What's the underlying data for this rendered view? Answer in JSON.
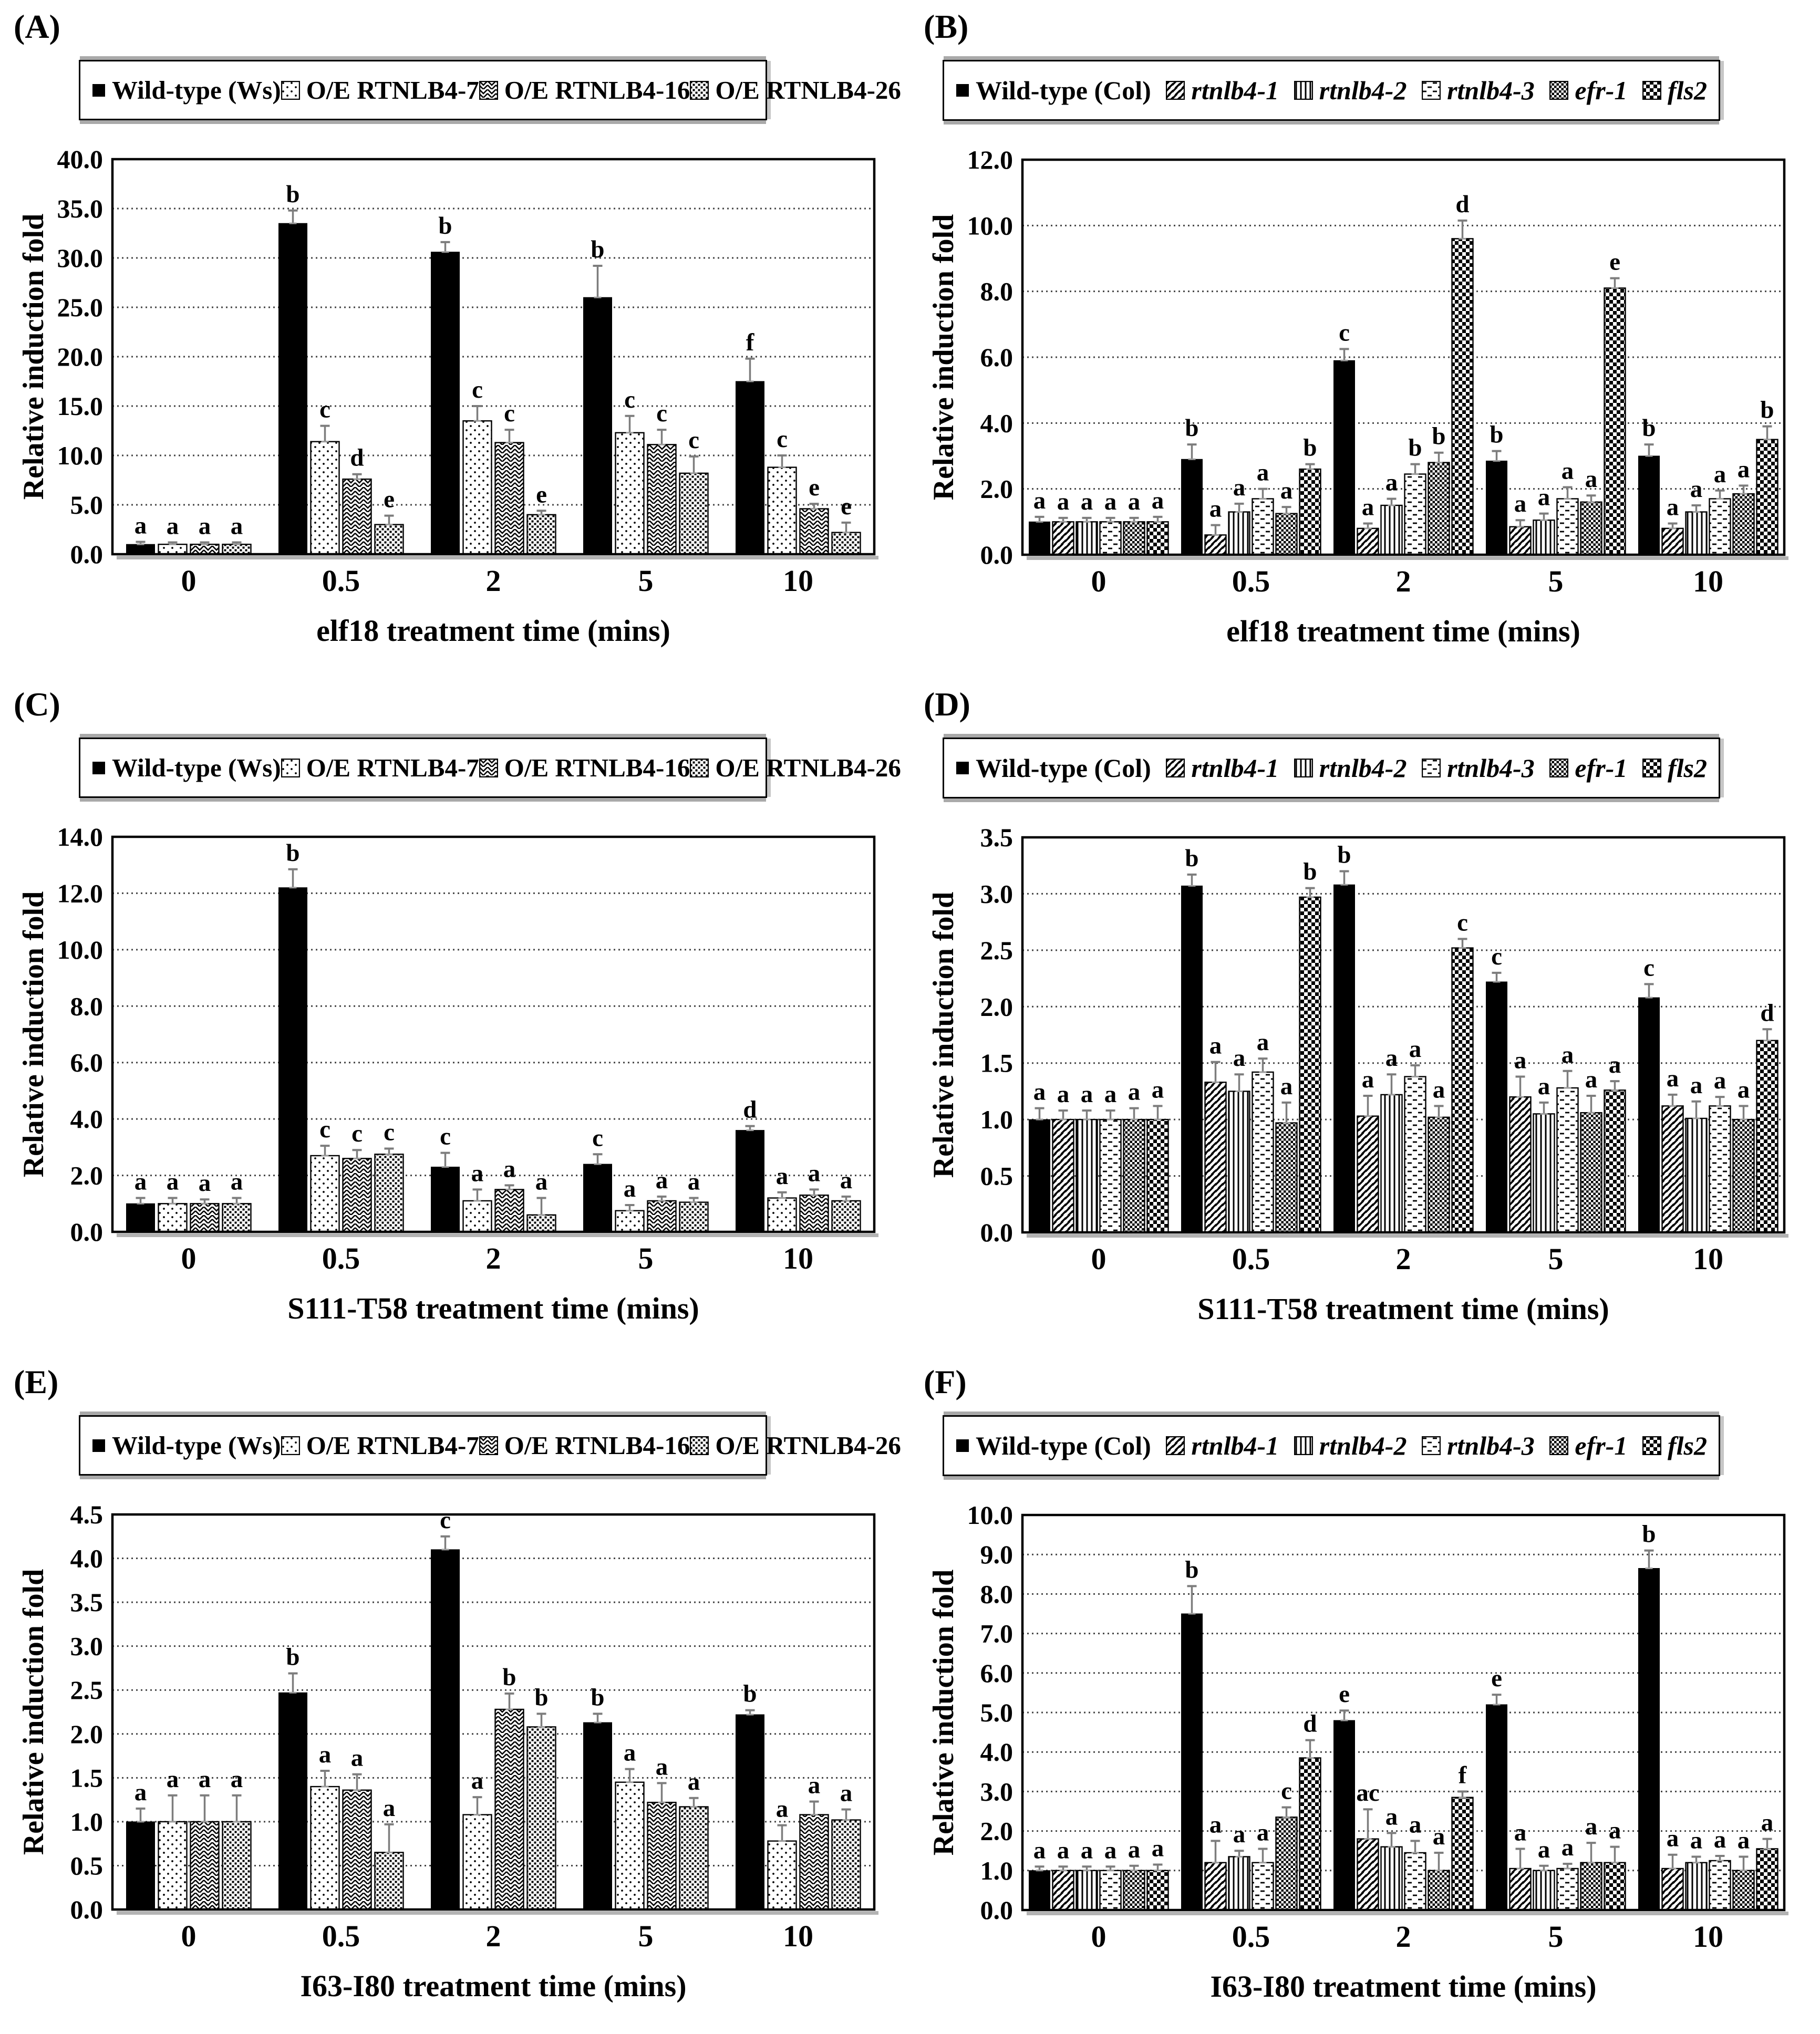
{
  "page": {
    "background": "#ffffff",
    "text_color": "#000000",
    "bar_color": "#000000",
    "error_bar_color": "#808080"
  },
  "figure": {
    "y_axis_label": "Relative induction fold"
  },
  "chart_data": [
    {
      "type": "bar",
      "panel_label": "(A)",
      "xlabel": "elf18 treatment time (mins)",
      "ylabel": "Relative induction fold",
      "ylim": [
        0,
        40
      ],
      "ytick_step": 5,
      "tick_decimals": 1,
      "legend_position": "top",
      "grid": "horizontal-dashed",
      "legend_style": "ws",
      "categories": [
        "0",
        "0.5",
        "2",
        "5",
        "10"
      ],
      "series": [
        {
          "name": "Wild-type (Ws)",
          "italic": false,
          "pattern": "solid",
          "values": [
            1.0,
            33.5,
            30.6,
            26.0,
            17.5
          ],
          "errors": [
            0.25,
            1.3,
            1.0,
            3.2,
            2.3
          ],
          "sig_letters": [
            "a",
            "b",
            "b",
            "b",
            "f"
          ]
        },
        {
          "name": "O/E RTNLB4-7",
          "italic": false,
          "pattern": "dots",
          "values": [
            1.0,
            11.4,
            13.5,
            12.3,
            8.8
          ],
          "errors": [
            0.2,
            1.6,
            1.5,
            1.7,
            1.2
          ],
          "sig_letters": [
            "a",
            "c",
            "c",
            "c",
            "c"
          ]
        },
        {
          "name": "O/E RTNLB4-16",
          "italic": false,
          "pattern": "chevron",
          "values": [
            1.0,
            7.6,
            11.3,
            11.1,
            4.6
          ],
          "errors": [
            0.2,
            0.5,
            1.3,
            1.5,
            0.5
          ],
          "sig_letters": [
            "a",
            "d",
            "c",
            "c",
            "e"
          ]
        },
        {
          "name": "O/E RTNLB4-26",
          "italic": false,
          "pattern": "dense-dots",
          "values": [
            1.0,
            3.0,
            4.0,
            8.2,
            2.2
          ],
          "errors": [
            0.2,
            0.9,
            0.4,
            1.7,
            1.0
          ],
          "sig_letters": [
            "a",
            "e",
            "e",
            "c",
            "e"
          ]
        }
      ]
    },
    {
      "type": "bar",
      "panel_label": "(B)",
      "xlabel": "elf18 treatment time (mins)",
      "ylabel": "Relative induction fold",
      "ylim": [
        0,
        12
      ],
      "ytick_step": 2,
      "tick_decimals": 1,
      "legend_position": "top",
      "grid": "horizontal-dashed",
      "legend_style": "col",
      "categories": [
        "0",
        "0.5",
        "2",
        "5",
        "10"
      ],
      "series": [
        {
          "name": "Wild-type (Col)",
          "italic": false,
          "pattern": "solid",
          "values": [
            1.0,
            2.9,
            5.9,
            2.85,
            3.0
          ],
          "errors": [
            0.15,
            0.45,
            0.35,
            0.3,
            0.35
          ],
          "sig_letters": [
            "a",
            "b",
            "c",
            "b",
            "b"
          ]
        },
        {
          "name": "rtnlb4-1",
          "italic": true,
          "pattern": "diag",
          "values": [
            1.0,
            0.6,
            0.8,
            0.85,
            0.8
          ],
          "errors": [
            0.12,
            0.3,
            0.15,
            0.2,
            0.15
          ],
          "sig_letters": [
            "a",
            "a",
            "a",
            "a",
            "a"
          ]
        },
        {
          "name": "rtnlb4-2",
          "italic": true,
          "pattern": "vert",
          "values": [
            1.0,
            1.3,
            1.5,
            1.05,
            1.3
          ],
          "errors": [
            0.12,
            0.25,
            0.2,
            0.2,
            0.2
          ],
          "sig_letters": [
            "a",
            "a",
            "a",
            "a",
            "a"
          ]
        },
        {
          "name": "rtnlb4-3",
          "italic": true,
          "pattern": "brick",
          "values": [
            1.0,
            1.7,
            2.45,
            1.7,
            1.7
          ],
          "errors": [
            0.12,
            0.3,
            0.3,
            0.35,
            0.25
          ],
          "sig_letters": [
            "a",
            "a",
            "b",
            "a",
            "a"
          ]
        },
        {
          "name": "efr-1",
          "italic": true,
          "pattern": "checker-sm",
          "values": [
            1.0,
            1.25,
            2.8,
            1.6,
            1.85
          ],
          "errors": [
            0.12,
            0.2,
            0.3,
            0.2,
            0.25
          ],
          "sig_letters": [
            "a",
            "a",
            "b",
            "a",
            "a"
          ]
        },
        {
          "name": "fls2",
          "italic": true,
          "pattern": "checker-lg",
          "values": [
            1.0,
            2.6,
            9.6,
            8.1,
            3.5
          ],
          "errors": [
            0.15,
            0.15,
            0.55,
            0.3,
            0.4
          ],
          "sig_letters": [
            "a",
            "b",
            "d",
            "e",
            "b"
          ]
        }
      ]
    },
    {
      "type": "bar",
      "panel_label": "(C)",
      "xlabel": "S111-T58 treatment time (mins)",
      "ylabel": "Relative induction fold",
      "ylim": [
        0,
        14
      ],
      "ytick_step": 2,
      "tick_decimals": 1,
      "legend_position": "top",
      "grid": "horizontal-dashed",
      "legend_style": "ws",
      "categories": [
        "0",
        "0.5",
        "2",
        "5",
        "10"
      ],
      "series": [
        {
          "name": "Wild-type (Ws)",
          "italic": false,
          "pattern": "solid",
          "values": [
            1.0,
            12.2,
            2.3,
            2.4,
            3.6
          ],
          "errors": [
            0.2,
            0.65,
            0.5,
            0.35,
            0.15
          ],
          "sig_letters": [
            "a",
            "b",
            "c",
            "c",
            "d"
          ]
        },
        {
          "name": "O/E RTNLB4-7",
          "italic": false,
          "pattern": "dots",
          "values": [
            1.0,
            2.7,
            1.1,
            0.75,
            1.2
          ],
          "errors": [
            0.2,
            0.35,
            0.4,
            0.2,
            0.2
          ],
          "sig_letters": [
            "a",
            "c",
            "a",
            "a",
            "a"
          ]
        },
        {
          "name": "O/E RTNLB4-16",
          "italic": false,
          "pattern": "chevron",
          "values": [
            1.0,
            2.6,
            1.5,
            1.1,
            1.3
          ],
          "errors": [
            0.15,
            0.3,
            0.15,
            0.15,
            0.2
          ],
          "sig_letters": [
            "a",
            "c",
            "a",
            "a",
            "a"
          ]
        },
        {
          "name": "O/E RTNLB4-26",
          "italic": false,
          "pattern": "dense-dots",
          "values": [
            1.0,
            2.75,
            0.6,
            1.05,
            1.1
          ],
          "errors": [
            0.2,
            0.2,
            0.6,
            0.15,
            0.15
          ],
          "sig_letters": [
            "a",
            "c",
            "a",
            "a",
            "a"
          ]
        }
      ]
    },
    {
      "type": "bar",
      "panel_label": "(D)",
      "xlabel": "S111-T58 treatment time (mins)",
      "ylabel": "Relative induction fold",
      "ylim": [
        0,
        3.5
      ],
      "ytick_step": 0.5,
      "tick_decimals": 1,
      "legend_position": "top",
      "grid": "horizontal-dashed",
      "legend_style": "col",
      "categories": [
        "0",
        "0.5",
        "2",
        "5",
        "10"
      ],
      "series": [
        {
          "name": "Wild-type (Col)",
          "italic": false,
          "pattern": "solid",
          "values": [
            1.0,
            3.07,
            3.08,
            2.22,
            2.08
          ],
          "errors": [
            0.1,
            0.1,
            0.12,
            0.08,
            0.12
          ],
          "sig_letters": [
            "a",
            "b",
            "b",
            "c",
            "c"
          ]
        },
        {
          "name": "rtnlb4-1",
          "italic": true,
          "pattern": "diag",
          "values": [
            1.0,
            1.33,
            1.03,
            1.2,
            1.12
          ],
          "errors": [
            0.08,
            0.18,
            0.18,
            0.18,
            0.1
          ],
          "sig_letters": [
            "a",
            "a",
            "a",
            "a",
            "a"
          ]
        },
        {
          "name": "rtnlb4-2",
          "italic": true,
          "pattern": "vert",
          "values": [
            1.0,
            1.25,
            1.22,
            1.05,
            1.01
          ],
          "errors": [
            0.08,
            0.15,
            0.18,
            0.1,
            0.15
          ],
          "sig_letters": [
            "a",
            "a",
            "a",
            "a",
            "a"
          ]
        },
        {
          "name": "rtnlb4-3",
          "italic": true,
          "pattern": "brick",
          "values": [
            1.0,
            1.42,
            1.38,
            1.28,
            1.12
          ],
          "errors": [
            0.08,
            0.12,
            0.1,
            0.15,
            0.08
          ],
          "sig_letters": [
            "a",
            "a",
            "a",
            "a",
            "a"
          ]
        },
        {
          "name": "efr-1",
          "italic": true,
          "pattern": "checker-sm",
          "values": [
            1.0,
            0.97,
            1.02,
            1.06,
            1.0
          ],
          "errors": [
            0.1,
            0.18,
            0.1,
            0.15,
            0.12
          ],
          "sig_letters": [
            "a",
            "a",
            "a",
            "a",
            "a"
          ]
        },
        {
          "name": "fls2",
          "italic": true,
          "pattern": "checker-lg",
          "values": [
            1.0,
            2.97,
            2.52,
            1.26,
            1.7
          ],
          "errors": [
            0.12,
            0.08,
            0.08,
            0.08,
            0.1
          ],
          "sig_letters": [
            "a",
            "b",
            "c",
            "a",
            "d"
          ]
        }
      ]
    },
    {
      "type": "bar",
      "panel_label": "(E)",
      "xlabel": "I63-I80 treatment time (mins)",
      "ylabel": "Relative induction fold",
      "ylim": [
        0,
        4.5
      ],
      "ytick_step": 0.5,
      "tick_decimals": 1,
      "legend_position": "top",
      "grid": "horizontal-dashed",
      "legend_style": "ws",
      "categories": [
        "0",
        "0.5",
        "2",
        "5",
        "10"
      ],
      "series": [
        {
          "name": "Wild-type (Ws)",
          "italic": false,
          "pattern": "solid",
          "values": [
            1.0,
            2.47,
            4.1,
            2.13,
            2.22
          ],
          "errors": [
            0.15,
            0.22,
            0.15,
            0.1,
            0.05
          ],
          "sig_letters": [
            "a",
            "b",
            "c",
            "b",
            "b"
          ]
        },
        {
          "name": "O/E RTNLB4-7",
          "italic": false,
          "pattern": "dots",
          "values": [
            1.0,
            1.4,
            1.08,
            1.45,
            0.78
          ],
          "errors": [
            0.3,
            0.18,
            0.2,
            0.15,
            0.18
          ],
          "sig_letters": [
            "a",
            "a",
            "a",
            "a",
            "a"
          ]
        },
        {
          "name": "O/E RTNLB4-16",
          "italic": false,
          "pattern": "chevron",
          "values": [
            1.0,
            1.36,
            2.28,
            1.22,
            1.08
          ],
          "errors": [
            0.3,
            0.18,
            0.18,
            0.22,
            0.15
          ],
          "sig_letters": [
            "a",
            "a",
            "b",
            "a",
            "a"
          ]
        },
        {
          "name": "O/E RTNLB4-26",
          "italic": false,
          "pattern": "dense-dots",
          "values": [
            1.0,
            0.65,
            2.08,
            1.17,
            1.02
          ],
          "errors": [
            0.3,
            0.32,
            0.15,
            0.1,
            0.12
          ],
          "sig_letters": [
            "a",
            "a",
            "b",
            "a",
            "a"
          ]
        }
      ]
    },
    {
      "type": "bar",
      "panel_label": "(F)",
      "xlabel": "I63-I80 treatment time (mins)",
      "ylabel": "Relative induction fold",
      "ylim": [
        0,
        10
      ],
      "ytick_step": 1,
      "tick_decimals": 1,
      "legend_position": "top",
      "grid": "horizontal-dashed",
      "legend_style": "col",
      "categories": [
        "0",
        "0.5",
        "2",
        "5",
        "10"
      ],
      "series": [
        {
          "name": "Wild-type (Col)",
          "italic": false,
          "pattern": "solid",
          "values": [
            1.0,
            7.5,
            4.8,
            5.2,
            8.65
          ],
          "errors": [
            0.1,
            0.7,
            0.25,
            0.25,
            0.45
          ],
          "sig_letters": [
            "a",
            "b",
            "e",
            "e",
            "b"
          ]
        },
        {
          "name": "rtnlb4-1",
          "italic": true,
          "pattern": "diag",
          "values": [
            1.0,
            1.2,
            1.8,
            1.05,
            1.05
          ],
          "errors": [
            0.1,
            0.55,
            0.75,
            0.5,
            0.35
          ],
          "sig_letters": [
            "a",
            "a",
            "ac",
            "a",
            "a"
          ]
        },
        {
          "name": "rtnlb4-2",
          "italic": true,
          "pattern": "vert",
          "values": [
            1.0,
            1.35,
            1.6,
            1.0,
            1.2
          ],
          "errors": [
            0.1,
            0.15,
            0.35,
            0.12,
            0.15
          ],
          "sig_letters": [
            "a",
            "a",
            "a",
            "a",
            "a"
          ]
        },
        {
          "name": "rtnlb4-3",
          "italic": true,
          "pattern": "brick",
          "values": [
            1.0,
            1.2,
            1.45,
            1.05,
            1.25
          ],
          "errors": [
            0.1,
            0.35,
            0.3,
            0.12,
            0.12
          ],
          "sig_letters": [
            "a",
            "a",
            "a",
            "a",
            "a"
          ]
        },
        {
          "name": "efr-1",
          "italic": true,
          "pattern": "checker-sm",
          "values": [
            1.0,
            2.35,
            1.0,
            1.2,
            1.0
          ],
          "errors": [
            0.12,
            0.25,
            0.45,
            0.5,
            0.35
          ],
          "sig_letters": [
            "a",
            "c",
            "a",
            "a",
            "a"
          ]
        },
        {
          "name": "fls2",
          "italic": true,
          "pattern": "checker-lg",
          "values": [
            1.0,
            3.85,
            2.85,
            1.2,
            1.55
          ],
          "errors": [
            0.15,
            0.45,
            0.15,
            0.4,
            0.25
          ],
          "sig_letters": [
            "a",
            "d",
            "f",
            "a",
            "a"
          ]
        }
      ]
    }
  ]
}
